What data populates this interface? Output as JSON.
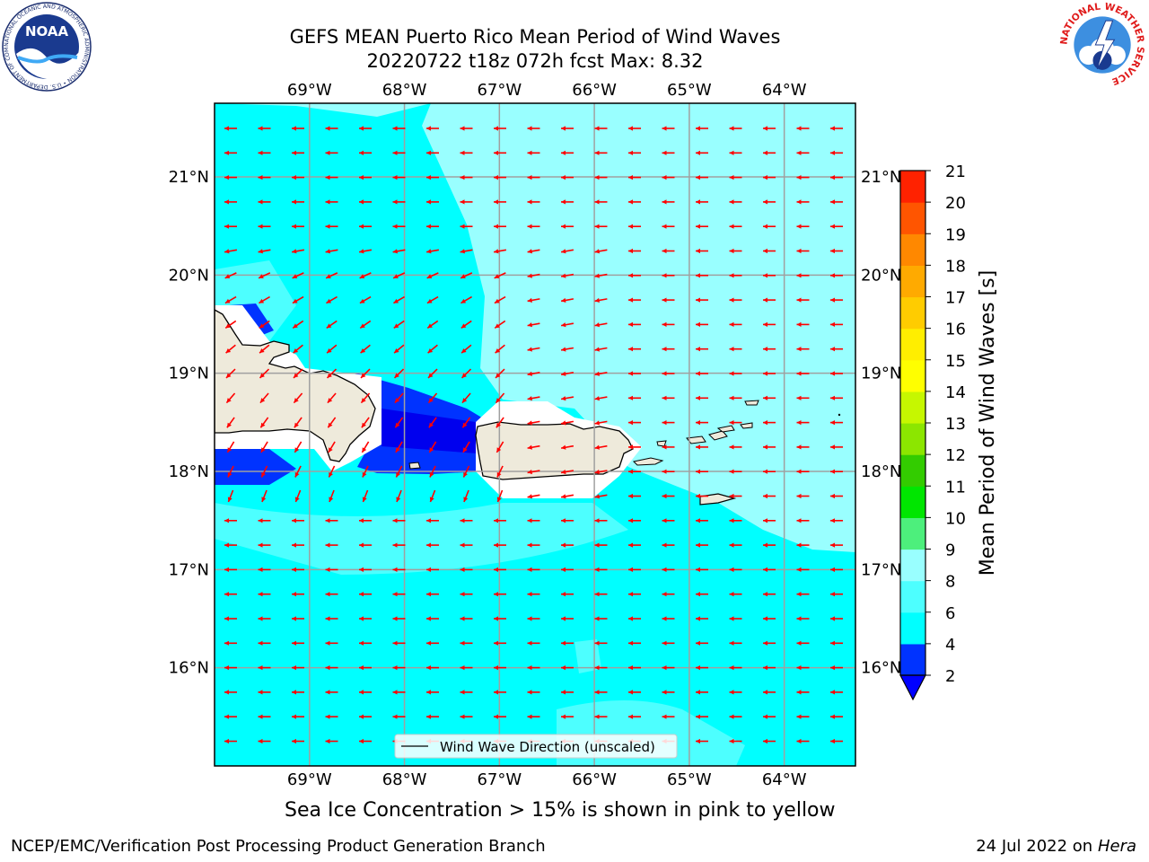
{
  "title_line1": "GEFS MEAN Puerto Rico Mean Period of Wind Waves",
  "title_line2": "20220722 t18z 072h fcst   Max: 8.32",
  "map": {
    "lon_labels": [
      "69°W",
      "68°W",
      "67°W",
      "66°W",
      "65°W",
      "64°W"
    ],
    "lat_labels": [
      "21°N",
      "20°N",
      "19°N",
      "18°N",
      "17°N",
      "16°N"
    ],
    "lon_range": [
      -70,
      -63.25
    ],
    "lat_range": [
      15.0,
      21.75
    ],
    "legend_label": "Wind Wave Direction (unscaled)",
    "ocean_color": "#00ffff",
    "land_color": "#eeeadb",
    "arrow_color": "#ff0000"
  },
  "colorbar": {
    "label": "Mean Period of Wind Waves [s]",
    "ticks": [
      "2",
      "4",
      "6",
      "8",
      "9",
      "10",
      "11",
      "12",
      "13",
      "14",
      "15",
      "16",
      "17",
      "18",
      "19",
      "20",
      "21"
    ],
    "colors": [
      "#0033ff",
      "#00ffff",
      "#4dffff",
      "#99ffff",
      "#4def7c",
      "#00e600",
      "#33cc00",
      "#8ce600",
      "#c6f700",
      "#ffff00",
      "#ffee00",
      "#ffcc00",
      "#ffaa00",
      "#ff8800",
      "#ff5500",
      "#ff2200"
    ],
    "extend_color": "#0000ff"
  },
  "subnote": "Sea Ice Concentration > 15% is shown in pink to yellow",
  "footer_left": "NCEP/EMC/Verification Post Processing Product Generation Branch",
  "footer_right_date": "24 Jul 2022 on ",
  "footer_right_host": "Hera",
  "logos": {
    "noaa_text": "NOAA",
    "noaa_ring": "NATIONAL OCEANIC AND ATMOSPHERIC ADMINISTRATION • U.S. DEPARTMENT OF COMMERCE",
    "nws_ring": "NATIONAL WEATHER SERVICE"
  }
}
